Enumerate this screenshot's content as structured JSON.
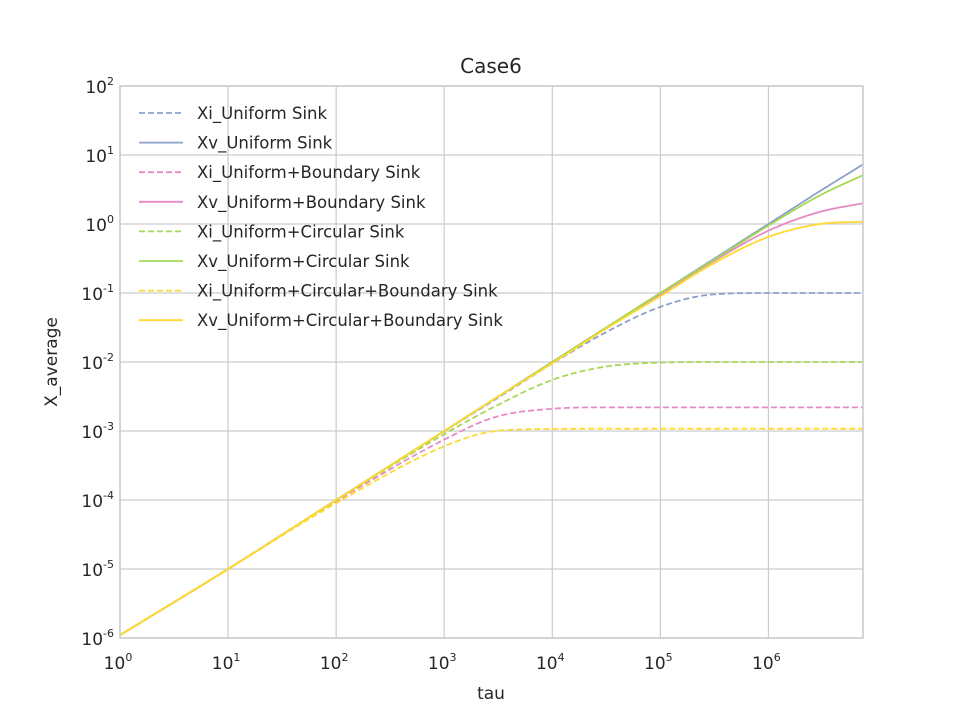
{
  "chart_data": {
    "type": "line",
    "title": "Case6",
    "xlabel": "tau",
    "ylabel": "X_average",
    "xscale": "log",
    "yscale": "log",
    "xlim": [
      1,
      7500000
    ],
    "ylim": [
      1e-06,
      100
    ],
    "x_ticks": [
      {
        "base": "10",
        "exp": "0",
        "value": 1
      },
      {
        "base": "10",
        "exp": "1",
        "value": 10
      },
      {
        "base": "10",
        "exp": "2",
        "value": 100
      },
      {
        "base": "10",
        "exp": "3",
        "value": 1000
      },
      {
        "base": "10",
        "exp": "4",
        "value": 10000
      },
      {
        "base": "10",
        "exp": "5",
        "value": 100000
      },
      {
        "base": "10",
        "exp": "6",
        "value": 1000000
      }
    ],
    "y_ticks": [
      {
        "base": "10",
        "exp": "-6",
        "value": 1e-06
      },
      {
        "base": "10",
        "exp": "-5",
        "value": 1e-05
      },
      {
        "base": "10",
        "exp": "-4",
        "value": 0.0001
      },
      {
        "base": "10",
        "exp": "-3",
        "value": 0.001
      },
      {
        "base": "10",
        "exp": "-2",
        "value": 0.01
      },
      {
        "base": "10",
        "exp": "-1",
        "value": 0.1
      },
      {
        "base": "10",
        "exp": "0",
        "value": 1
      },
      {
        "base": "10",
        "exp": "1",
        "value": 10
      },
      {
        "base": "10",
        "exp": "2",
        "value": 100
      }
    ],
    "grid": true,
    "legend_position": "top-left",
    "x": [
      1,
      10,
      100,
      1000,
      3000,
      10000,
      30000,
      100000,
      300000,
      1000000,
      3000000,
      7500000
    ],
    "series": [
      {
        "name": "Xi_Uniform Sink",
        "color": "#8da0cb",
        "dash": true,
        "values": [
          1.1e-06,
          1e-05,
          0.0001,
          0.00099,
          0.0029,
          0.0095,
          0.026,
          0.063,
          0.095,
          0.1,
          0.1,
          0.1
        ]
      },
      {
        "name": "Xv_Uniform Sink",
        "color": "#8da0cb",
        "dash": false,
        "values": [
          1.1e-06,
          1e-05,
          0.0001,
          0.001,
          0.003,
          0.01,
          0.03,
          0.1,
          0.3,
          1.0,
          3.0,
          7.3
        ]
      },
      {
        "name": "Xi_Uniform+Boundary Sink",
        "color": "#e78ac3",
        "dash": true,
        "values": [
          1.1e-06,
          1e-05,
          9.6e-05,
          0.00075,
          0.0016,
          0.0021,
          0.0022,
          0.0022,
          0.0022,
          0.0022,
          0.0022,
          0.0022
        ]
      },
      {
        "name": "Xv_Uniform+Boundary Sink",
        "color": "#e78ac3",
        "dash": false,
        "values": [
          1.1e-06,
          1e-05,
          0.0001,
          0.001,
          0.003,
          0.01,
          0.03,
          0.096,
          0.28,
          0.8,
          1.5,
          2.0
        ]
      },
      {
        "name": "Xi_Uniform+Circular Sink",
        "color": "#a6d854",
        "dash": true,
        "values": [
          1.1e-06,
          1e-05,
          9.9e-05,
          0.0009,
          0.0023,
          0.0055,
          0.0085,
          0.0098,
          0.01,
          0.01,
          0.01,
          0.01
        ]
      },
      {
        "name": "Xv_Uniform+Circular Sink",
        "color": "#a6d854",
        "dash": false,
        "values": [
          1.1e-06,
          1e-05,
          0.0001,
          0.001,
          0.003,
          0.01,
          0.03,
          0.1,
          0.29,
          0.95,
          2.6,
          5.1
        ]
      },
      {
        "name": "Xi_Uniform+Circular+Boundary Sink",
        "color": "#ffd92f",
        "dash": true,
        "values": [
          1.1e-06,
          1e-05,
          9e-05,
          0.0006,
          0.001,
          0.00107,
          0.00108,
          0.00108,
          0.00108,
          0.00108,
          0.00108,
          0.00108
        ]
      },
      {
        "name": "Xv_Uniform+Circular+Boundary Sink",
        "color": "#ffd92f",
        "dash": false,
        "values": [
          1.1e-06,
          1e-05,
          0.0001,
          0.001,
          0.003,
          0.0096,
          0.029,
          0.09,
          0.26,
          0.65,
          1.0,
          1.08
        ]
      }
    ]
  }
}
